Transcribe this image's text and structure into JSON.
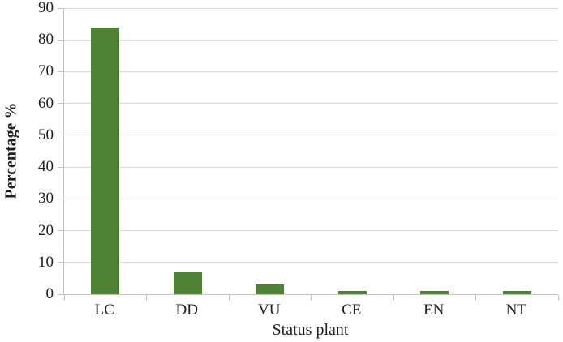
{
  "chart_data": {
    "type": "bar",
    "title": "",
    "categories": [
      "LC",
      "DD",
      "VU",
      "CE",
      "EN",
      "NT"
    ],
    "values": [
      84,
      7,
      3,
      1,
      1,
      1
    ],
    "xlabel": "Status plant",
    "ylabel": "Percentage %",
    "ylim": [
      0,
      90
    ],
    "yticks": [
      0,
      10,
      20,
      30,
      40,
      50,
      60,
      70,
      80,
      90
    ],
    "grid": true,
    "legend": false,
    "bar_color": "#4e8134",
    "gridline_color": "#d9d9d9",
    "axis_color": "#c3c3c3",
    "text_color": "#1f1f1f"
  }
}
